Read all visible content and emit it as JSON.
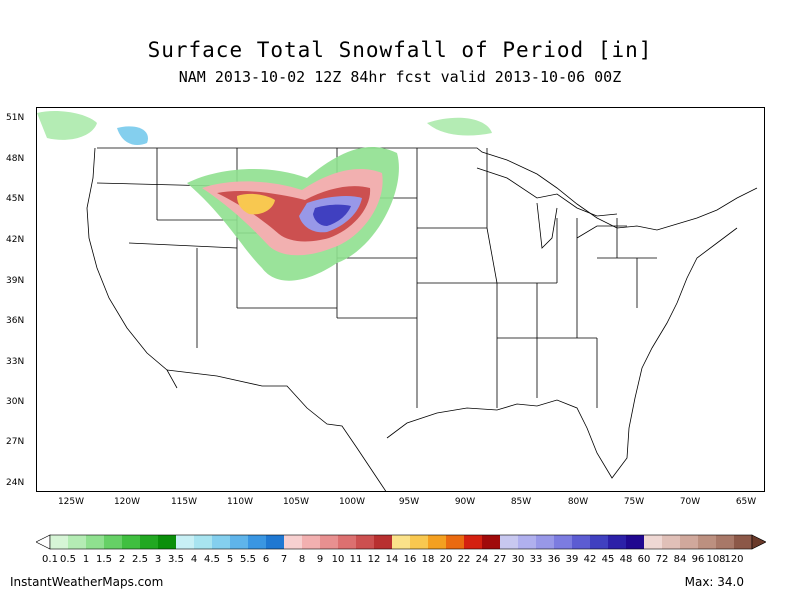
{
  "title": "Surface Total Snowfall of Period [in]",
  "subtitle": "NAM 2013-10-02 12Z 84hr fcst valid 2013-10-06 00Z",
  "lat_labels": [
    "51N",
    "48N",
    "45N",
    "42N",
    "39N",
    "36N",
    "33N",
    "30N",
    "27N",
    "24N"
  ],
  "lon_labels": [
    "125W",
    "120W",
    "115W",
    "110W",
    "105W",
    "100W",
    "95W",
    "90W",
    "85W",
    "80W",
    "75W",
    "70W",
    "65W"
  ],
  "colorbar": {
    "levels": [
      "0.1",
      "0.5",
      "1",
      "1.5",
      "2",
      "2.5",
      "3",
      "3.5",
      "4",
      "4.5",
      "5",
      "5.5",
      "6",
      "7",
      "8",
      "9",
      "10",
      "11",
      "12",
      "14",
      "16",
      "18",
      "20",
      "22",
      "24",
      "27",
      "30",
      "33",
      "36",
      "39",
      "42",
      "45",
      "48",
      "60",
      "72",
      "84",
      "96",
      "108",
      "120"
    ],
    "colors": [
      "#d6f5d6",
      "#b4ecb4",
      "#8fe08f",
      "#66d066",
      "#40bf40",
      "#22a822",
      "#0a8f0a",
      "#c8f0f5",
      "#a8e4f0",
      "#84cfee",
      "#5fb4ea",
      "#3a96e2",
      "#1f78d2",
      "#f7d0d0",
      "#f2b0b0",
      "#e89090",
      "#dc7070",
      "#cc5050",
      "#b83030",
      "#fbe28a",
      "#f8c850",
      "#f4a020",
      "#ea6a10",
      "#d42010",
      "#a00a0a",
      "#c8c8f0",
      "#b0b0ee",
      "#9898e8",
      "#7c7ce0",
      "#5c5cd2",
      "#4040c0",
      "#2c20a8",
      "#200890",
      "#efd8d4",
      "#e0c0b8",
      "#d0a89c",
      "#bc9080",
      "#a87868",
      "#8c5848"
    ],
    "under_color": "#ffffff",
    "over_color": "#6a3a2a"
  },
  "footer": {
    "site": "InstantWeatherMaps.com",
    "max_label": "Max:  34.0"
  }
}
